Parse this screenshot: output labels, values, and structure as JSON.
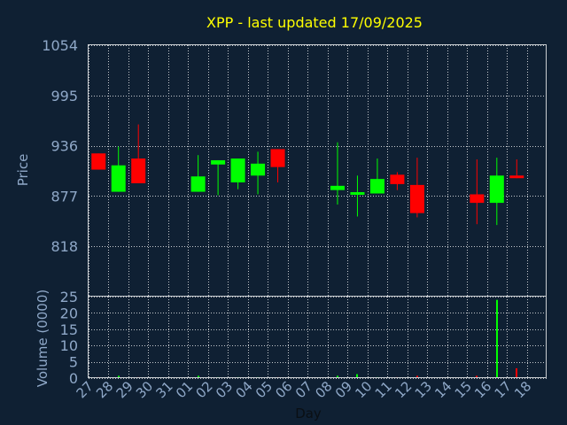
{
  "chart_data": {
    "type": "candlestick",
    "title": "XPP - last updated 17/09/2025",
    "xlabel": "Day",
    "ylabel_price": "Price",
    "ylabel_volume": "Volume (0000)",
    "price_ylim": [
      759,
      1054
    ],
    "price_ticks": [
      "1054",
      "995",
      "936",
      "877",
      "818"
    ],
    "price_tick_values": [
      1054,
      995,
      936,
      877,
      818
    ],
    "volume_ylim": [
      0,
      25
    ],
    "volume_ticks": [
      "0",
      "5",
      "10",
      "15",
      "20",
      "25"
    ],
    "volume_tick_values": [
      0,
      5,
      10,
      15,
      20,
      25
    ],
    "x_ticks": [
      "27",
      "28",
      "29",
      "30",
      "31",
      "01",
      "02",
      "03",
      "04",
      "05",
      "06",
      "07",
      "08",
      "09",
      "10",
      "11",
      "12",
      "13",
      "14",
      "15",
      "16",
      "17",
      "18"
    ],
    "grid": true,
    "colors": {
      "background": "#0f2033",
      "title": "#ffff00",
      "axis_text": "#8fa8c8",
      "up": "#00ff00",
      "down": "#ff0000",
      "grid": "#c8ccd0"
    },
    "candles": [
      {
        "day": "27",
        "open": 927,
        "close": 908,
        "high": 927,
        "low": 908
      },
      {
        "day": "28",
        "open": 882,
        "close": 913,
        "high": 935,
        "low": 882
      },
      {
        "day": "29",
        "open": 921,
        "close": 892,
        "high": 961,
        "low": 892
      },
      {
        "day": "01",
        "open": 882,
        "close": 900,
        "high": 925,
        "low": 882
      },
      {
        "day": "02",
        "open": 914,
        "close": 919,
        "high": 919,
        "low": 878
      },
      {
        "day": "03",
        "open": 893,
        "close": 921,
        "high": 921,
        "low": 885
      },
      {
        "day": "04",
        "open": 901,
        "close": 915,
        "high": 929,
        "low": 879
      },
      {
        "day": "05",
        "open": 932,
        "close": 911,
        "high": 932,
        "low": 893
      },
      {
        "day": "08",
        "open": 884,
        "close": 889,
        "high": 940,
        "low": 867
      },
      {
        "day": "09",
        "open": 879,
        "close": 881,
        "high": 901,
        "low": 853
      },
      {
        "day": "10",
        "open": 880,
        "close": 897,
        "high": 921,
        "low": 880
      },
      {
        "day": "11",
        "open": 902,
        "close": 891,
        "high": 905,
        "low": 884
      },
      {
        "day": "12",
        "open": 890,
        "close": 857,
        "high": 922,
        "low": 852
      },
      {
        "day": "15",
        "open": 879,
        "close": 869,
        "high": 920,
        "low": 844
      },
      {
        "day": "16",
        "open": 869,
        "close": 901,
        "high": 922,
        "low": 843
      },
      {
        "day": "17",
        "open": 901,
        "close": 898,
        "high": 920,
        "low": 898
      }
    ],
    "volume": [
      {
        "day": "27",
        "value": 0.3
      },
      {
        "day": "28",
        "value": 0.7
      },
      {
        "day": "29",
        "value": 0.3
      },
      {
        "day": "01",
        "value": 0.7
      },
      {
        "day": "02",
        "value": 0.3
      },
      {
        "day": "03",
        "value": 0.3
      },
      {
        "day": "04",
        "value": 0.3
      },
      {
        "day": "05",
        "value": 0.3
      },
      {
        "day": "08",
        "value": 0.7
      },
      {
        "day": "09",
        "value": 1.2
      },
      {
        "day": "10",
        "value": 0.3
      },
      {
        "day": "11",
        "value": 0.3
      },
      {
        "day": "12",
        "value": 0.7
      },
      {
        "day": "15",
        "value": 0.7
      },
      {
        "day": "16",
        "value": 24
      },
      {
        "day": "17",
        "value": 3
      }
    ]
  }
}
